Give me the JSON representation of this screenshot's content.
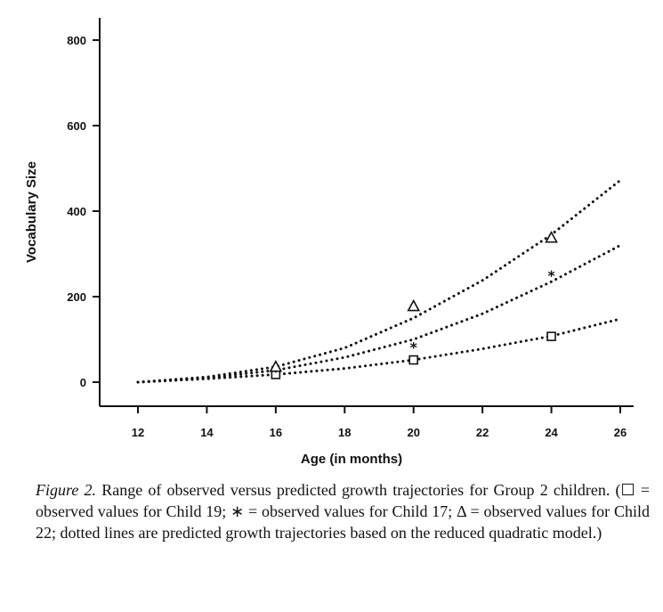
{
  "chart_data": {
    "type": "scatter",
    "xlabel": "Age (in months)",
    "ylabel": "Vocabulary Size",
    "xlim": [
      12,
      26
    ],
    "ylim": [
      0,
      800
    ],
    "xticks": [
      12,
      14,
      16,
      18,
      20,
      22,
      24,
      26
    ],
    "yticks": [
      0,
      200,
      400,
      600,
      800
    ],
    "observed_series": [
      {
        "child": 19,
        "marker": "square",
        "x": [
          16,
          20,
          24
        ],
        "y": [
          18,
          52,
          107
        ]
      },
      {
        "child": 17,
        "marker": "asterisk",
        "x": [
          16,
          20,
          24
        ],
        "y": [
          26,
          82,
          250
        ]
      },
      {
        "child": 22,
        "marker": "triangle",
        "x": [
          16,
          20,
          24
        ],
        "y": [
          36,
          178,
          338
        ]
      }
    ],
    "predicted_series": [
      {
        "child": 19,
        "style": "dotted",
        "x": [
          12,
          14,
          16,
          18,
          20,
          22,
          24,
          26
        ],
        "y": [
          0,
          8,
          18,
          32,
          52,
          78,
          108,
          148
        ]
      },
      {
        "child": 17,
        "style": "dotted",
        "x": [
          12,
          14,
          16,
          18,
          20,
          22,
          24,
          26
        ],
        "y": [
          0,
          10,
          28,
          58,
          100,
          160,
          235,
          320
        ]
      },
      {
        "child": 22,
        "style": "dotted",
        "x": [
          12,
          14,
          16,
          18,
          20,
          22,
          24,
          26
        ],
        "y": [
          0,
          12,
          36,
          80,
          150,
          238,
          345,
          472
        ]
      }
    ]
  },
  "caption": {
    "label": "Figure 2.",
    "text": "Range of observed versus predicted growth trajectories for Group 2 children. (☐ = observed values for Child 19; ∗ = observed values for Child 17; Δ = observed values for Child 22; dotted lines are predicted growth trajectories based on the reduced quadratic model.)"
  }
}
